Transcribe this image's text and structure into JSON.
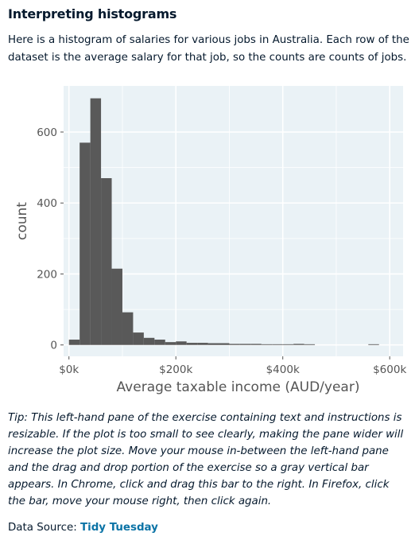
{
  "page": {
    "title": "Interpreting histograms",
    "intro": "Here is a histogram of salaries for various jobs in Australia. Each row of the dataset is the average salary for that job, so the counts are counts of jobs.",
    "tip": "Tip: This left-hand pane of the exercise containing text and instructions is resizable. If the plot is too small to see clearly, making the pane wider will increase the plot size. Move your mouse in-between the left-hand pane and the drag and drop portion of the exercise so a gray vertical bar appears. In Chrome, click and drag this bar to the right. In Firefox, click the bar, move your mouse right, then click again.",
    "source_label": "Data Source: ",
    "source_link": "Tidy Tuesday"
  },
  "chart_data": {
    "type": "bar",
    "xlabel": "Average taxable income (AUD/year)",
    "ylabel": "count",
    "x_ticks": [
      {
        "value": 0,
        "label": "$0k"
      },
      {
        "value": 200000,
        "label": "$200k"
      },
      {
        "value": 400000,
        "label": "$400k"
      },
      {
        "value": 600000,
        "label": "$600k"
      }
    ],
    "y_ticks": [
      {
        "value": 0,
        "label": "0"
      },
      {
        "value": 200,
        "label": "200"
      },
      {
        "value": 400,
        "label": "400"
      },
      {
        "value": 600,
        "label": "600"
      }
    ],
    "xlim": [
      -10000,
      625000
    ],
    "ylim": [
      -32,
      730
    ],
    "bin_width": 20000,
    "bins": [
      {
        "x0": 0,
        "count": 15
      },
      {
        "x0": 20000,
        "count": 570
      },
      {
        "x0": 40000,
        "count": 695
      },
      {
        "x0": 60000,
        "count": 470
      },
      {
        "x0": 80000,
        "count": 215
      },
      {
        "x0": 100000,
        "count": 92
      },
      {
        "x0": 120000,
        "count": 35
      },
      {
        "x0": 140000,
        "count": 20
      },
      {
        "x0": 160000,
        "count": 15
      },
      {
        "x0": 180000,
        "count": 8
      },
      {
        "x0": 200000,
        "count": 10
      },
      {
        "x0": 220000,
        "count": 6
      },
      {
        "x0": 240000,
        "count": 6
      },
      {
        "x0": 260000,
        "count": 5
      },
      {
        "x0": 280000,
        "count": 5
      },
      {
        "x0": 300000,
        "count": 3
      },
      {
        "x0": 320000,
        "count": 3
      },
      {
        "x0": 340000,
        "count": 3
      },
      {
        "x0": 360000,
        "count": 2
      },
      {
        "x0": 380000,
        "count": 2
      },
      {
        "x0": 400000,
        "count": 2
      },
      {
        "x0": 420000,
        "count": 3
      },
      {
        "x0": 440000,
        "count": 2
      },
      {
        "x0": 460000,
        "count": 0
      },
      {
        "x0": 480000,
        "count": 0
      },
      {
        "x0": 500000,
        "count": 0
      },
      {
        "x0": 520000,
        "count": 0
      },
      {
        "x0": 540000,
        "count": 0
      },
      {
        "x0": 560000,
        "count": 2
      },
      {
        "x0": 580000,
        "count": 0
      }
    ],
    "grid": true,
    "panel_color": "#eaf2f6",
    "bar_color": "#595959"
  }
}
